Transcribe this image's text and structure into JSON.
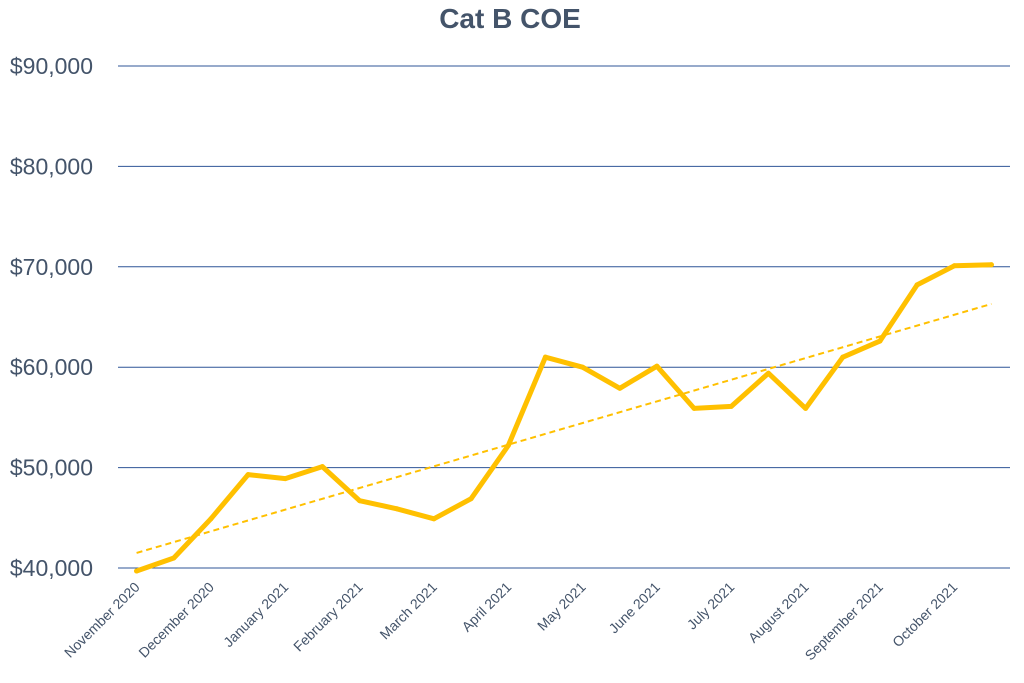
{
  "chart_data": {
    "type": "line",
    "title": "Cat B COE",
    "xlabel": "",
    "ylabel": "",
    "ylim": [
      40000,
      90000
    ],
    "yticks": [
      40000,
      50000,
      60000,
      70000,
      80000,
      90000
    ],
    "ytick_labels": [
      "$40,000",
      "$50,000",
      "$60,000",
      "$70,000",
      "$80,000",
      "$90,000"
    ],
    "categories": [
      "November 2020",
      "December 2020",
      "January 2021",
      "February 2021",
      "March 2021",
      "April 2021",
      "May 2021",
      "June 2021",
      "July 2021",
      "August 2021",
      "September 2021",
      "October 2021"
    ],
    "x_positions": [
      0,
      2,
      4,
      6,
      8,
      10,
      12,
      14,
      16,
      18,
      20,
      22
    ],
    "x_count": 24,
    "series": [
      {
        "name": "Cat B COE",
        "color": "#ffc000",
        "x": [
          0,
          1,
          2,
          3,
          4,
          5,
          6,
          7,
          8,
          9,
          10,
          11,
          12,
          13,
          14,
          15,
          16,
          17,
          18,
          19,
          20,
          21,
          22,
          23
        ],
        "values": [
          39700,
          40999,
          44900,
          49300,
          48900,
          50100,
          46700,
          45900,
          44900,
          46900,
          52200,
          61000,
          60000,
          57900,
          60100,
          55900,
          56100,
          59400,
          55900,
          61000,
          62600,
          68200,
          70100,
          70200
        ]
      }
    ],
    "trendline": {
      "type": "linear",
      "color": "#ffc000",
      "start": 41500,
      "end": 66300
    },
    "grid": true
  }
}
